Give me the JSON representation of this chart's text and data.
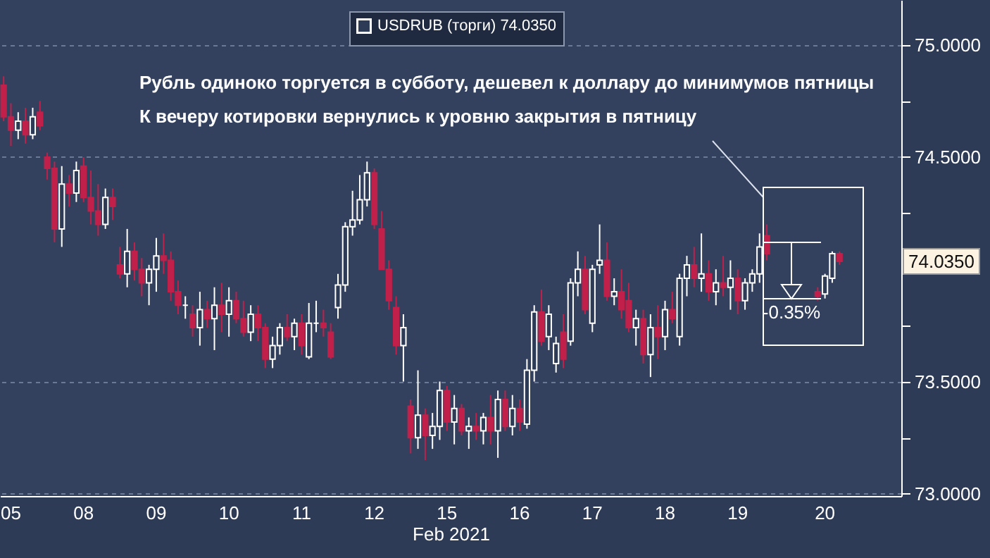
{
  "chart_data": {
    "type": "candlestick",
    "xlabel": "Feb 2021",
    "legend": "top",
    "grid": "y",
    "ylim": [
      72.99,
      75.2
    ],
    "yticks": [
      {
        "value": 73,
        "label": "73.0000"
      },
      {
        "value": 73.25,
        "label": null
      },
      {
        "value": 73.5,
        "label": "73.5000"
      },
      {
        "value": 73.75,
        "label": null
      },
      {
        "value": 74,
        "label": null
      },
      {
        "value": 74.25,
        "label": null
      },
      {
        "value": 74.5,
        "label": "74.5000"
      },
      {
        "value": 74.75,
        "label": null
      },
      {
        "value": 75,
        "label": "75.0000"
      }
    ],
    "annotations": [
      "Рубль одиноко торгуется в субботу, дешевел к доллару до минимумов пятницы",
      "К вечеру котировки вернулись к уровню закрытия в пятницу",
      "-0.35%",
      "74.0350"
    ],
    "categories": [
      null,
      "05",
      null,
      null,
      null,
      null,
      null,
      null,
      null,
      null,
      null,
      "08",
      null,
      null,
      null,
      null,
      null,
      null,
      null,
      null,
      null,
      "09",
      null,
      null,
      null,
      null,
      null,
      null,
      null,
      null,
      null,
      "10",
      null,
      null,
      null,
      null,
      null,
      null,
      null,
      null,
      null,
      "11",
      null,
      null,
      null,
      null,
      null,
      null,
      null,
      null,
      null,
      "12",
      null,
      null,
      null,
      null,
      null,
      null,
      null,
      null,
      null,
      "15",
      null,
      null,
      null,
      null,
      null,
      null,
      null,
      null,
      null,
      "16",
      null,
      null,
      null,
      null,
      null,
      null,
      null,
      null,
      null,
      "17",
      null,
      null,
      null,
      null,
      null,
      null,
      null,
      null,
      null,
      "18",
      null,
      null,
      null,
      null,
      null,
      null,
      null,
      null,
      null,
      "19",
      null,
      null,
      null,
      null,
      null,
      null,
      null,
      null,
      null,
      null,
      null,
      "20",
      null,
      null,
      null,
      null,
      null,
      null,
      null,
      null,
      null,
      null
    ],
    "series": [
      {
        "name": "USDRUB (торги) 74.0350",
        "color": "#ffffff",
        "colors": [
          "#c0204a",
          "#c0204a",
          "#ffffff",
          "#c0204a",
          "#ffffff",
          "#c0204a",
          "#c0204a",
          "#c0204a",
          "#ffffff",
          "#c0204a",
          "#ffffff",
          "#c0204a",
          "#c0204a",
          "#c0204a",
          "#ffffff",
          "#c0204a",
          "#c0204a",
          "#ffffff",
          "#c0204a",
          "#c0204a",
          "#ffffff",
          "#ffffff",
          "#c0204a",
          "#c0204a",
          "#c0204a",
          "#ffffff",
          "#c0204a",
          "#ffffff",
          "#c0204a",
          "#ffffff",
          "#c0204a",
          "#ffffff",
          "#c0204a",
          "#c0204a",
          "#ffffff",
          "#c0204a",
          "#c0204a",
          "#ffffff",
          "#ffffff",
          "#c0204a",
          "#ffffff",
          "#c0204a",
          "#ffffff",
          "#ffffff",
          "#c0204a",
          "#c0204a",
          "#ffffff",
          "#ffffff",
          "#ffffff",
          "#ffffff",
          "#ffffff",
          "#c0204a",
          "#c0204a",
          "#c0204a",
          "#c0204a",
          "#ffffff",
          "#c0204a",
          "#ffffff",
          "#c0204a",
          "#ffffff",
          "#ffffff",
          "#c0204a",
          "#ffffff",
          "#c0204a",
          "#ffffff",
          "#c0204a",
          "#ffffff",
          "#c0204a",
          "#ffffff",
          "#c0204a",
          "#ffffff",
          "#c0204a",
          "#ffffff",
          "#ffffff",
          "#c0204a",
          "#ffffff",
          "#ffffff",
          "#c0204a",
          "#ffffff",
          "#ffffff",
          "#c0204a",
          "#ffffff",
          "#ffffff",
          "#c0204a",
          "#ffffff",
          "#c0204a",
          "#c0204a",
          "#ffffff",
          "#c0204a",
          "#ffffff",
          "#c0204a",
          "#ffffff",
          "#c0204a",
          "#ffffff",
          "#ffffff",
          "#c0204a",
          "#ffffff",
          "#c0204a",
          "#ffffff",
          "#c0204a",
          "#ffffff",
          "#c0204a",
          "#ffffff",
          "#ffffff",
          "#ffffff",
          "#c0204a",
          null,
          null,
          null,
          null,
          null,
          null,
          "#c0204a",
          "#ffffff",
          "#ffffff",
          "#c0204a",
          null,
          null,
          null,
          null,
          null,
          null,
          null,
          null
        ],
        "ohlc": [
          [
            74.82,
            74.86,
            74.66,
            74.68
          ],
          [
            74.68,
            74.74,
            74.55,
            74.62
          ],
          [
            74.62,
            74.7,
            74.58,
            74.66
          ],
          [
            74.66,
            74.72,
            74.56,
            74.6
          ],
          [
            74.6,
            74.72,
            74.58,
            74.68
          ],
          [
            74.7,
            74.75,
            74.62,
            74.64
          ],
          [
            74.5,
            74.52,
            74.4,
            74.45
          ],
          [
            74.45,
            74.48,
            74.12,
            74.18
          ],
          [
            74.18,
            74.46,
            74.1,
            74.38
          ],
          [
            74.38,
            74.42,
            74.28,
            74.34
          ],
          [
            74.34,
            74.48,
            74.3,
            74.44
          ],
          [
            74.46,
            74.5,
            74.3,
            74.32
          ],
          [
            74.32,
            74.44,
            74.2,
            74.26
          ],
          [
            74.26,
            74.38,
            74.15,
            74.2
          ],
          [
            74.2,
            74.36,
            74.18,
            74.32
          ],
          [
            74.32,
            74.36,
            74.22,
            74.28
          ],
          [
            74.02,
            74.1,
            73.96,
            73.98
          ],
          [
            73.98,
            74.18,
            73.92,
            74.08
          ],
          [
            74.08,
            74.12,
            73.95,
            74.0
          ],
          [
            74.0,
            74.05,
            73.88,
            73.94
          ],
          [
            73.94,
            74.02,
            73.84,
            74.0
          ],
          [
            74.0,
            74.14,
            73.9,
            74.06
          ],
          [
            74.06,
            74.16,
            73.98,
            74.04
          ],
          [
            74.04,
            74.08,
            73.86,
            73.9
          ],
          [
            73.9,
            73.95,
            73.8,
            73.84
          ],
          [
            73.84,
            73.88,
            73.78,
            73.84
          ],
          [
            73.8,
            73.84,
            73.7,
            73.74
          ],
          [
            73.74,
            73.9,
            73.66,
            73.82
          ],
          [
            73.82,
            73.86,
            73.74,
            73.78
          ],
          [
            73.78,
            73.92,
            73.64,
            73.84
          ],
          [
            73.84,
            73.94,
            73.72,
            73.8
          ],
          [
            73.8,
            73.92,
            73.7,
            73.86
          ],
          [
            73.86,
            73.9,
            73.76,
            73.78
          ],
          [
            73.78,
            73.86,
            73.7,
            73.72
          ],
          [
            73.72,
            73.84,
            73.68,
            73.8
          ],
          [
            73.8,
            73.84,
            73.68,
            73.74
          ],
          [
            73.74,
            73.76,
            73.56,
            73.6
          ],
          [
            73.6,
            73.7,
            73.56,
            73.66
          ],
          [
            73.66,
            73.76,
            73.62,
            73.74
          ],
          [
            73.74,
            73.8,
            73.68,
            73.7
          ],
          [
            73.7,
            73.78,
            73.64,
            73.76
          ],
          [
            73.76,
            73.8,
            73.62,
            73.66
          ],
          [
            73.61,
            73.85,
            73.6,
            73.76
          ],
          [
            73.76,
            73.86,
            73.72,
            73.76
          ],
          [
            73.76,
            73.82,
            73.7,
            73.74
          ],
          [
            73.72,
            73.76,
            73.6,
            73.61
          ],
          [
            73.83,
            73.98,
            73.78,
            73.93
          ],
          [
            73.93,
            74.21,
            73.9,
            74.19
          ],
          [
            74.19,
            74.35,
            74.15,
            74.22
          ],
          [
            74.22,
            74.42,
            74.2,
            74.31
          ],
          [
            74.31,
            74.48,
            74.28,
            74.43
          ],
          [
            74.43,
            74.45,
            74.18,
            74.2
          ],
          [
            74.18,
            74.26,
            74.0,
            74.0
          ],
          [
            74.0,
            74.04,
            73.82,
            73.86
          ],
          [
            73.83,
            73.88,
            73.62,
            73.66
          ],
          [
            73.66,
            73.8,
            73.5,
            73.74
          ],
          [
            73.39,
            73.42,
            73.18,
            73.25
          ],
          [
            73.25,
            73.55,
            73.2,
            73.35
          ],
          [
            73.35,
            73.38,
            73.15,
            73.26
          ],
          [
            73.26,
            73.36,
            73.2,
            73.3
          ],
          [
            73.3,
            73.5,
            73.24,
            73.46
          ],
          [
            73.46,
            73.48,
            73.28,
            73.32
          ],
          [
            73.32,
            73.44,
            73.22,
            73.38
          ],
          [
            73.38,
            73.4,
            73.26,
            73.28
          ],
          [
            73.28,
            73.34,
            73.2,
            73.3
          ],
          [
            73.3,
            73.36,
            73.24,
            73.28
          ],
          [
            73.28,
            73.36,
            73.22,
            73.34
          ],
          [
            73.34,
            73.44,
            73.22,
            73.28
          ],
          [
            73.28,
            73.46,
            73.16,
            73.42
          ],
          [
            73.42,
            73.46,
            73.28,
            73.3
          ],
          [
            73.3,
            73.44,
            73.26,
            73.38
          ],
          [
            73.38,
            73.42,
            73.28,
            73.32
          ],
          [
            73.31,
            73.6,
            73.29,
            73.55
          ],
          [
            73.55,
            73.84,
            73.5,
            73.81
          ],
          [
            73.81,
            73.91,
            73.66,
            73.68
          ],
          [
            73.7,
            73.84,
            73.64,
            73.8
          ],
          [
            73.58,
            73.7,
            73.54,
            73.67
          ],
          [
            73.72,
            73.8,
            73.56,
            73.6
          ],
          [
            73.68,
            73.96,
            73.66,
            73.94
          ],
          [
            73.94,
            74.08,
            73.88,
            74.0
          ],
          [
            74.0,
            74.06,
            73.8,
            73.82
          ],
          [
            73.76,
            74.02,
            73.72,
            74.0
          ],
          [
            74.02,
            74.2,
            73.98,
            74.04
          ],
          [
            74.04,
            74.12,
            73.86,
            73.88
          ],
          [
            73.88,
            73.96,
            73.84,
            73.9
          ],
          [
            73.9,
            74.0,
            73.78,
            73.82
          ],
          [
            73.86,
            73.94,
            73.72,
            73.74
          ],
          [
            73.74,
            73.82,
            73.66,
            73.78
          ],
          [
            73.78,
            73.82,
            73.58,
            73.62
          ],
          [
            73.62,
            73.8,
            73.52,
            73.74
          ],
          [
            73.74,
            73.84,
            73.6,
            73.7
          ],
          [
            73.7,
            73.86,
            73.64,
            73.82
          ],
          [
            73.82,
            73.9,
            73.76,
            73.78
          ],
          [
            73.7,
            73.98,
            73.66,
            73.96
          ],
          [
            73.96,
            74.06,
            73.88,
            74.02
          ],
          [
            74.02,
            74.1,
            73.92,
            73.96
          ],
          [
            73.96,
            74.16,
            73.9,
            73.98
          ],
          [
            73.98,
            74.04,
            73.86,
            73.9
          ],
          [
            73.9,
            74.0,
            73.84,
            73.94
          ],
          [
            73.94,
            74.06,
            73.88,
            73.92
          ],
          [
            73.92,
            74.04,
            73.82,
            73.96
          ],
          [
            73.96,
            74.0,
            73.8,
            73.86
          ],
          [
            73.86,
            73.96,
            73.82,
            73.94
          ],
          [
            73.94,
            74.0,
            73.9,
            73.98
          ],
          [
            73.98,
            74.16,
            73.94,
            74.1
          ],
          [
            74.15,
            74.2,
            74.04,
            74.07
          ],
          null,
          null,
          null,
          null,
          null,
          null,
          [
            73.9,
            73.92,
            73.86,
            73.88
          ],
          [
            73.89,
            73.98,
            73.87,
            73.97
          ],
          [
            73.96,
            74.08,
            73.94,
            74.07
          ],
          [
            74.07,
            74.08,
            74.02,
            74.035
          ],
          null,
          null,
          null,
          null,
          null,
          null,
          null,
          null
        ]
      }
    ]
  }
}
